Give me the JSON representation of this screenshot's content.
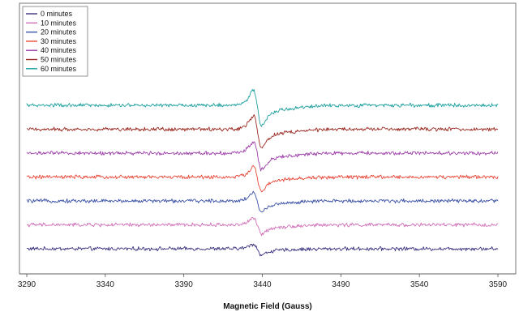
{
  "chart_data": {
    "type": "line",
    "title": "",
    "xlabel": "Magnetic Field (Gauss)",
    "ylabel": "",
    "xlim": [
      3290,
      3590
    ],
    "x_ticks": [
      3290,
      3340,
      3390,
      3440,
      3490,
      3540,
      3590
    ],
    "grid": false,
    "legend_placement": "top-left",
    "y_axis_visible": false,
    "series_offset_order": "0 minutes at bottom, 60 minutes at top",
    "signal_center_gauss": 3437,
    "series": [
      {
        "name": "0 minutes",
        "color": "#3b3480",
        "baseline_offset": 0,
        "peak_amplitude": 0.9
      },
      {
        "name": "10 minutes",
        "color": "#d070b8",
        "baseline_offset": 1,
        "peak_amplitude": 1.3
      },
      {
        "name": "20 minutes",
        "color": "#3c52a8",
        "baseline_offset": 2,
        "peak_amplitude": 1.6
      },
      {
        "name": "30 minutes",
        "color": "#e84838",
        "baseline_offset": 3,
        "peak_amplitude": 2.0
      },
      {
        "name": "40 minutes",
        "color": "#9c3ea8",
        "baseline_offset": 4,
        "peak_amplitude": 2.3
      },
      {
        "name": "50 minutes",
        "color": "#9a2a22",
        "baseline_offset": 5,
        "peak_amplitude": 2.6
      },
      {
        "name": "60 minutes",
        "color": "#1fa0a0",
        "baseline_offset": 6,
        "peak_amplitude": 2.9
      }
    ]
  }
}
